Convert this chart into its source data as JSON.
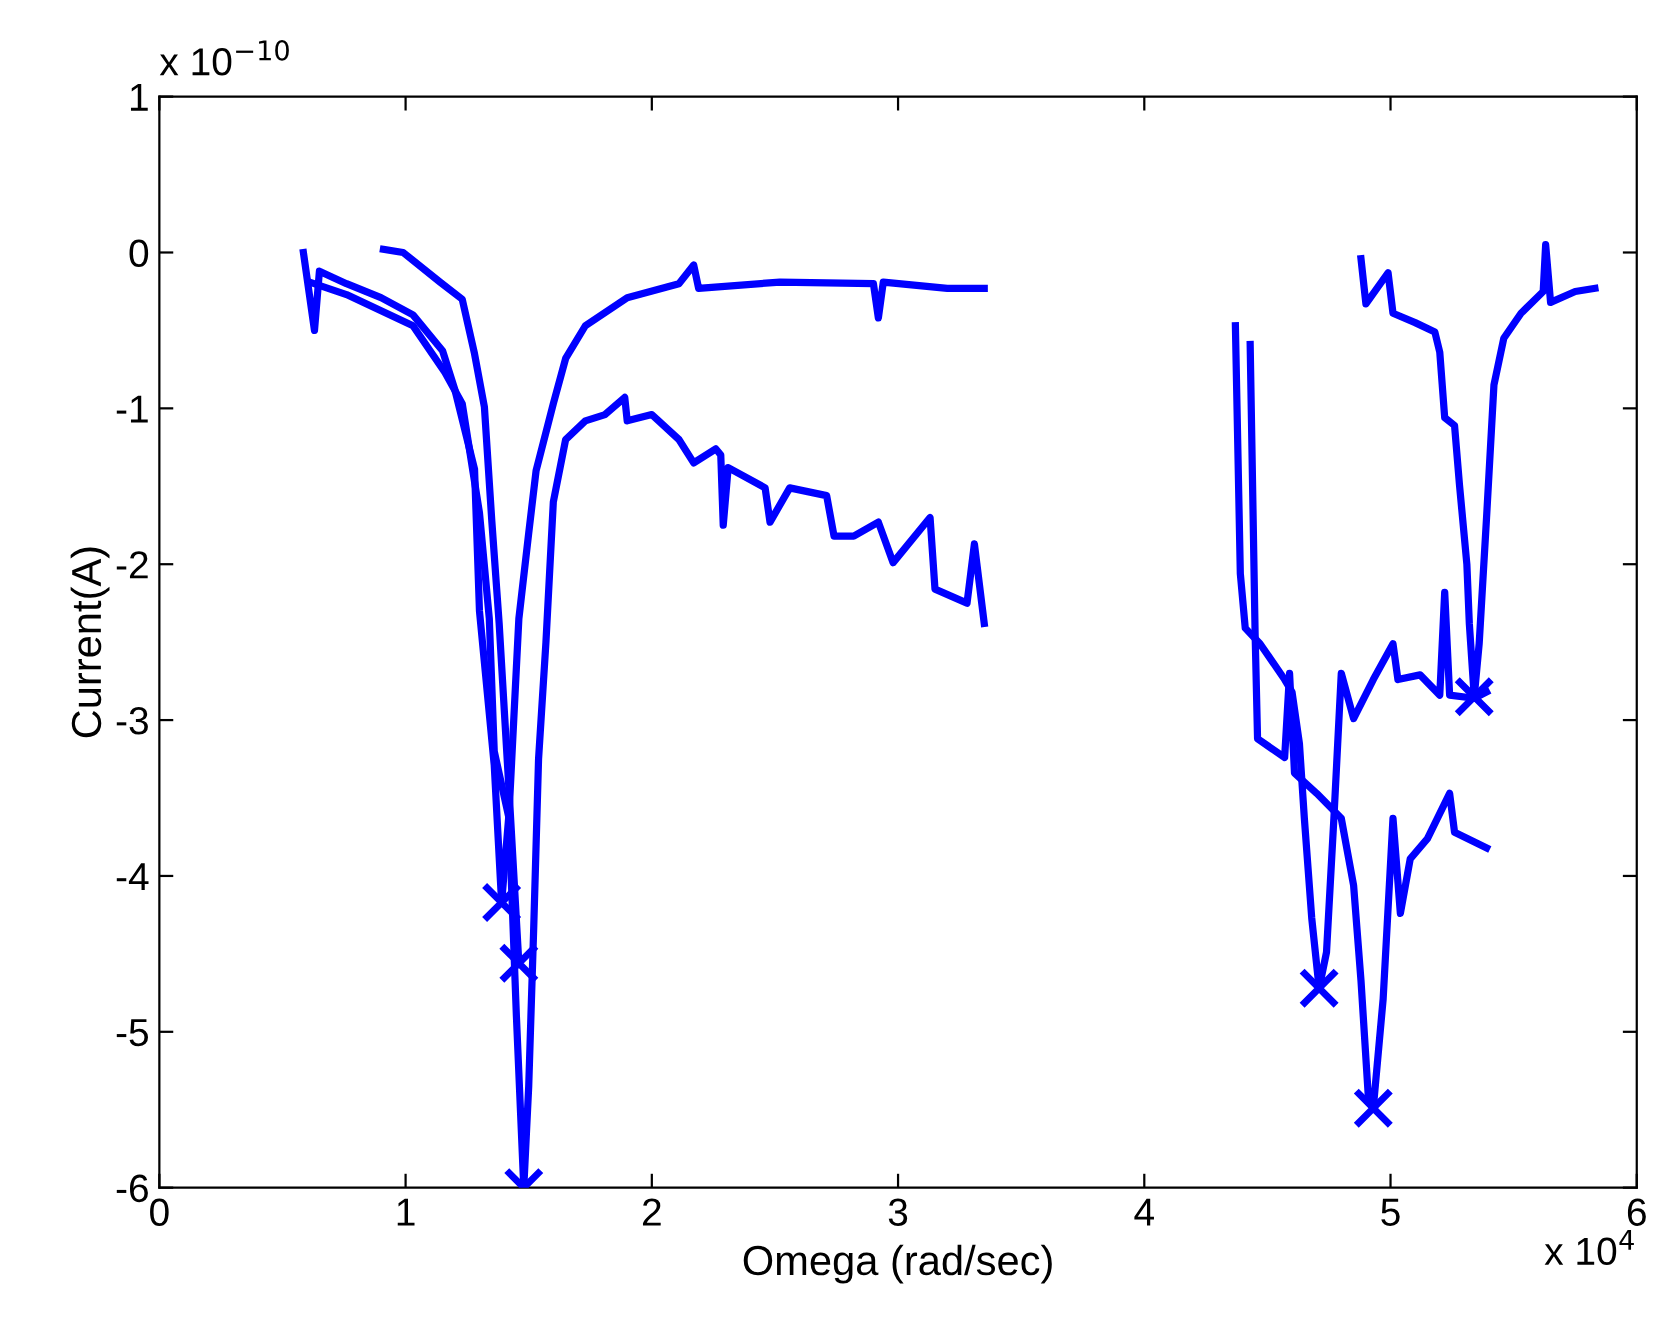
{
  "chart_data": {
    "type": "line",
    "xlabel": "Omega (rad/sec)",
    "ylabel": "Current(A)",
    "annotations": [
      "x 10$^{−10}$",
      "x 10$^{4}$"
    ],
    "xlim": [
      0,
      6
    ],
    "ylim": [
      -6,
      1
    ],
    "xticks": [
      0,
      1,
      2,
      3,
      4,
      5,
      6
    ],
    "yticks": [
      -6,
      -5,
      -4,
      -3,
      -2,
      -1,
      0,
      1
    ],
    "grid": false,
    "legend": false,
    "series": [
      {
        "type": "line",
        "color": "#0000ff",
        "marker": "none",
        "x": [
          0.585,
          0.63,
          0.65,
          0.76,
          0.9,
          1.03,
          1.15,
          1.2,
          1.28,
          1.3,
          1.36,
          1.39,
          1.42,
          1.46,
          1.5,
          1.53,
          1.6,
          1.65,
          1.73,
          1.9,
          2.11,
          2.17,
          2.19,
          2.52,
          2.9,
          2.92,
          2.94,
          3.2,
          3.35
        ],
        "values": [
          0,
          -0.5,
          -0.12,
          -0.2,
          -0.29,
          -0.4,
          -0.63,
          -0.88,
          -1.39,
          -2.3,
          -3.29,
          -4.17,
          -3.6,
          -2.35,
          -1.8,
          -1.4,
          -0.97,
          -0.68,
          -0.47,
          -0.29,
          -0.2,
          -0.08,
          -0.23,
          -0.19,
          -0.2,
          -0.42,
          -0.19,
          -0.23,
          -0.23
        ]
      },
      {
        "type": "line",
        "color": "#0000ff",
        "marker": "none",
        "x": [
          0.61,
          0.76,
          1.03,
          1.16,
          1.23,
          1.3,
          1.34,
          1.36,
          1.42,
          1.45,
          1.48,
          1.5,
          1.52,
          1.54,
          1.57,
          1.6,
          1.65,
          1.73,
          1.81,
          1.89,
          1.9,
          2.0,
          2.11,
          2.17,
          2.26,
          2.28,
          2.29,
          2.31,
          2.46,
          2.48,
          2.56,
          2.71,
          2.74,
          2.82,
          2.92,
          2.98,
          3.13,
          3.15,
          3.28,
          3.31,
          3.35
        ],
        "values": [
          -0.19,
          -0.27,
          -0.47,
          -0.77,
          -0.97,
          -1.67,
          -2.35,
          -3.2,
          -3.63,
          -4.9,
          -6.0,
          -5.35,
          -4.35,
          -3.25,
          -2.5,
          -1.6,
          -1.2,
          -1.08,
          -1.04,
          -0.93,
          -1.08,
          -1.04,
          -1.2,
          -1.35,
          -1.26,
          -1.3,
          -1.75,
          -1.38,
          -1.51,
          -1.73,
          -1.51,
          -1.56,
          -1.82,
          -1.82,
          -1.73,
          -1.99,
          -1.7,
          -2.16,
          -2.25,
          -1.87,
          -2.38
        ]
      },
      {
        "type": "line",
        "color": "#0000ff",
        "marker": "none",
        "x": [
          0.91,
          0.99,
          1.14,
          1.23,
          1.28,
          1.32,
          1.35,
          1.38,
          1.42,
          1.46
        ],
        "values": [
          0.02,
          0,
          -0.19,
          -0.3,
          -0.65,
          -0.99,
          -1.72,
          -2.38,
          -3.45,
          -4.56
        ]
      },
      {
        "type": "line",
        "color": "#0000ff",
        "marker": "none",
        "x": [
          4.37,
          4.39,
          4.41,
          4.47,
          4.57,
          4.6,
          4.63,
          4.65,
          4.68,
          4.71,
          4.74,
          4.77,
          4.8,
          4.85,
          4.93,
          5.01,
          5.03,
          5.12,
          5.2,
          5.22,
          5.24,
          5.34,
          5.39
        ],
        "values": [
          -0.47,
          -2.06,
          -2.41,
          -2.51,
          -2.74,
          -2.82,
          -3.15,
          -3.63,
          -4.27,
          -4.72,
          -4.49,
          -3.63,
          -2.7,
          -2.99,
          -2.74,
          -2.51,
          -2.74,
          -2.71,
          -2.84,
          -2.18,
          -2.84,
          -2.86,
          -2.82
        ]
      },
      {
        "type": "line",
        "color": "#0000ff",
        "marker": "none",
        "x": [
          4.43,
          4.45,
          4.46,
          4.57,
          4.59,
          4.61,
          4.7,
          4.8,
          4.85,
          4.88,
          4.91,
          4.93,
          4.97,
          5.01,
          5.04,
          5.08,
          5.15,
          5.24,
          5.26,
          5.39
        ],
        "values": [
          -0.59,
          -2.44,
          -3.12,
          -3.24,
          -2.7,
          -3.34,
          -3.47,
          -3.63,
          -4.06,
          -4.67,
          -5.42,
          -5.49,
          -4.79,
          -3.63,
          -4.24,
          -3.89,
          -3.76,
          -3.47,
          -3.72,
          -3.82
        ]
      },
      {
        "type": "line",
        "color": "#0000ff",
        "marker": "none",
        "x": [
          4.88,
          4.9,
          4.99,
          5.01,
          5.1,
          5.18,
          5.2,
          5.22,
          5.26,
          5.28,
          5.31,
          5.32,
          5.34,
          5.36,
          5.39,
          5.42,
          5.46,
          5.53,
          5.62,
          5.63,
          5.65,
          5.75,
          5.83
        ],
        "values": [
          -0.04,
          -0.33,
          -0.13,
          -0.39,
          -0.45,
          -0.51,
          -0.64,
          -1.06,
          -1.11,
          -1.49,
          -2.0,
          -2.38,
          -2.85,
          -2.51,
          -1.7,
          -0.85,
          -0.55,
          -0.39,
          -0.25,
          0.05,
          -0.32,
          -0.25,
          -0.23
        ]
      },
      {
        "type": "scatter",
        "color": "#0000ff",
        "marker": "cross",
        "x": [
          1.39,
          1.48,
          1.46,
          4.71,
          4.93,
          5.34
        ],
        "values": [
          -4.17,
          -6.0,
          -4.56,
          -4.72,
          -5.49,
          -2.85
        ]
      }
    ]
  }
}
